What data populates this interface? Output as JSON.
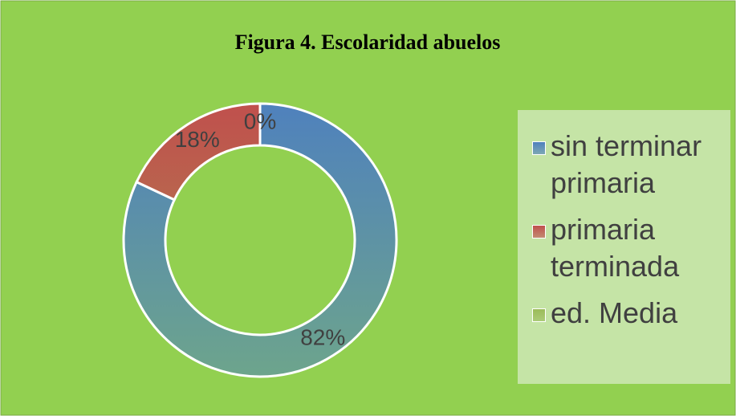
{
  "chart_data": {
    "type": "donut",
    "title": "Figura 4. Escolaridad abuelos",
    "categories": [
      "sin terminar primaria",
      "primaria terminada",
      "ed. Media"
    ],
    "values": [
      82,
      18,
      0
    ],
    "value_labels": [
      "82%",
      "18%",
      "0%"
    ],
    "colors": [
      "#4f81bd",
      "#c0504d",
      "#9bbb59"
    ]
  }
}
